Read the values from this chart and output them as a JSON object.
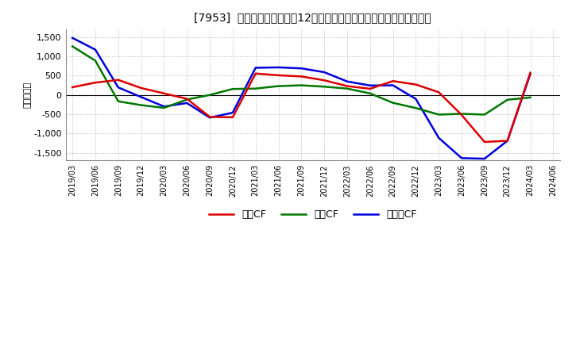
{
  "title": "[7953]  キャッシュフローの12か月移動合計の対前年同期増減額の推移",
  "ylabel": "（百万円）",
  "background_color": "#ffffff",
  "grid_color": "#aaaaaa",
  "ylim": [
    -1700,
    1700
  ],
  "yticks": [
    -1500,
    -1000,
    -500,
    0,
    500,
    1000,
    1500
  ],
  "x_labels": [
    "2019/03",
    "2019/06",
    "2019/09",
    "2019/12",
    "2020/03",
    "2020/06",
    "2020/09",
    "2020/12",
    "2021/03",
    "2021/06",
    "2021/09",
    "2021/12",
    "2022/03",
    "2022/06",
    "2022/09",
    "2022/12",
    "2023/03",
    "2023/06",
    "2023/09",
    "2023/12",
    "2024/03",
    "2024/06"
  ],
  "operating_cf": [
    200,
    320,
    390,
    180,
    40,
    -100,
    -570,
    -580,
    555,
    510,
    480,
    380,
    230,
    160,
    360,
    270,
    70,
    -520,
    -1220,
    -1190,
    575,
    null
  ],
  "investing_cf": [
    1260,
    890,
    -165,
    -265,
    -335,
    -120,
    0,
    155,
    165,
    230,
    250,
    215,
    165,
    40,
    -205,
    -340,
    -510,
    -490,
    -510,
    -125,
    -65,
    null
  ],
  "free_cf": [
    1480,
    1175,
    195,
    -55,
    -300,
    -210,
    -590,
    -460,
    705,
    715,
    690,
    590,
    350,
    245,
    250,
    -105,
    -1115,
    -1640,
    -1655,
    -1190,
    545,
    null
  ],
  "line_colors": {
    "operating": "#dd0000",
    "investing": "#007700",
    "free": "#0000dd"
  },
  "line_width": 1.8,
  "legend_labels": {
    "operating": "営業CF",
    "investing": "投資CF",
    "free": "フリーCF"
  }
}
